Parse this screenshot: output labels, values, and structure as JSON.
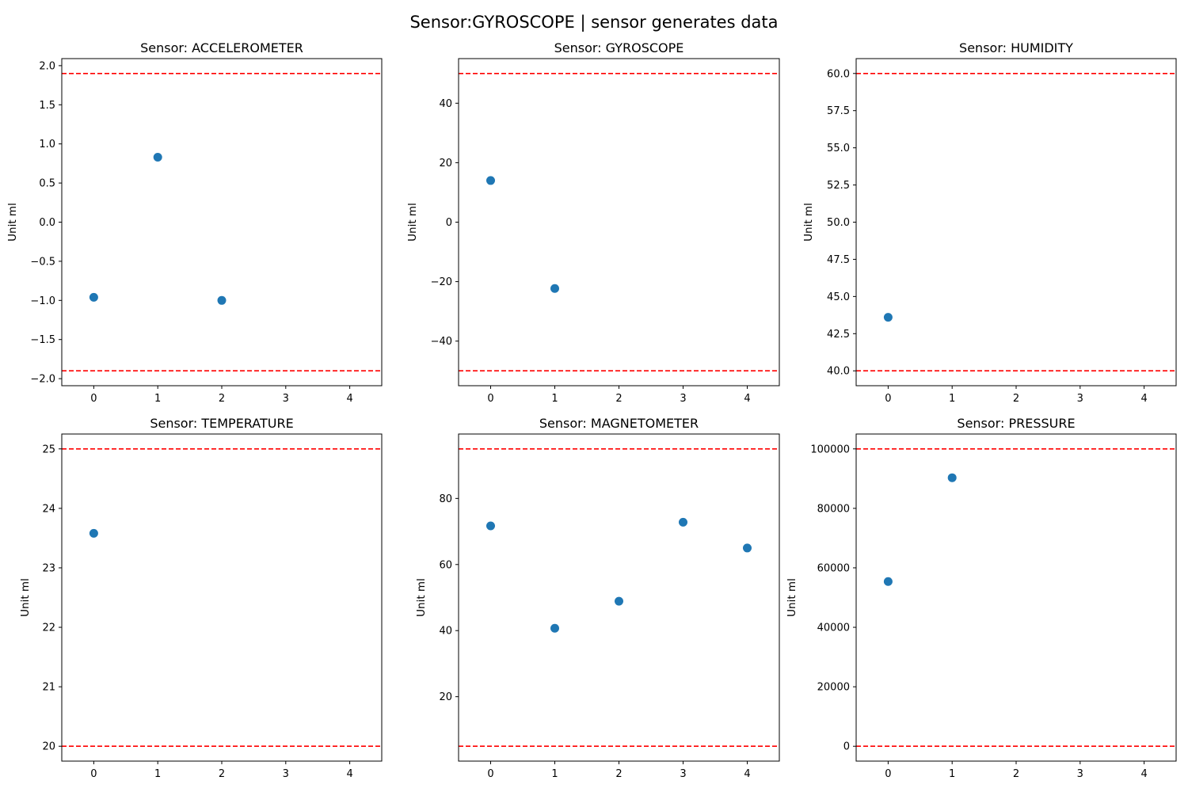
{
  "figure": {
    "title": "Sensor:GYROSCOPE | sensor generates data"
  },
  "style": {
    "point_color": "#1f77b4",
    "threshold_color": "#ff0000",
    "threshold_line_style": "dashed"
  },
  "chart_data": [
    {
      "type": "scatter",
      "title": "Sensor: ACCELEROMETER",
      "xlabel": "",
      "ylabel": "Unit ml",
      "x": [
        0,
        1,
        2
      ],
      "y": [
        -0.96,
        0.83,
        -1.0
      ],
      "thresholds": [
        1.9,
        -1.9
      ],
      "xlim": [
        -0.5,
        4.5
      ],
      "ylim": [
        -2.09,
        2.09
      ],
      "xticks": [
        "0",
        "1",
        "2",
        "3",
        "4"
      ],
      "yticks": [
        "−2.0",
        "−1.5",
        "−1.0",
        "−0.5",
        "0.0",
        "0.5",
        "1.0",
        "1.5",
        "2.0"
      ],
      "grid": false
    },
    {
      "type": "scatter",
      "title": "Sensor: GYROSCOPE",
      "xlabel": "",
      "ylabel": "Unit ml",
      "x": [
        0,
        1
      ],
      "y": [
        14,
        -22.3
      ],
      "thresholds": [
        50,
        -50
      ],
      "xlim": [
        -0.5,
        4.5
      ],
      "ylim": [
        -55,
        55
      ],
      "xticks": [
        "0",
        "1",
        "2",
        "3",
        "4"
      ],
      "yticks": [
        "−40",
        "−20",
        "0",
        "20",
        "40"
      ],
      "grid": false
    },
    {
      "type": "scatter",
      "title": "Sensor: HUMIDITY",
      "xlabel": "",
      "ylabel": "Unit ml",
      "x": [
        0
      ],
      "y": [
        43.6
      ],
      "thresholds": [
        60,
        40
      ],
      "xlim": [
        -0.5,
        4.5
      ],
      "ylim": [
        39,
        61
      ],
      "xticks": [
        "0",
        "1",
        "2",
        "3",
        "4"
      ],
      "yticks": [
        "40.0",
        "42.5",
        "45.0",
        "47.5",
        "50.0",
        "52.5",
        "55.0",
        "57.5",
        "60.0"
      ],
      "grid": false
    },
    {
      "type": "scatter",
      "title": "Sensor: TEMPERATURE",
      "xlabel": "",
      "ylabel": "Unit ml",
      "x": [
        0
      ],
      "y": [
        23.58
      ],
      "thresholds": [
        25,
        20
      ],
      "xlim": [
        -0.5,
        4.5
      ],
      "ylim": [
        19.75,
        25.25
      ],
      "xticks": [
        "0",
        "1",
        "2",
        "3",
        "4"
      ],
      "yticks": [
        "20",
        "21",
        "22",
        "23",
        "24",
        "25"
      ],
      "grid": false
    },
    {
      "type": "scatter",
      "title": "Sensor: MAGNETOMETER",
      "xlabel": "",
      "ylabel": "Unit ml",
      "x": [
        0,
        1,
        2,
        3,
        4
      ],
      "y": [
        71.7,
        40.7,
        48.9,
        72.8,
        65.0
      ],
      "thresholds": [
        95,
        5
      ],
      "xlim": [
        -0.5,
        4.5
      ],
      "ylim": [
        0.5,
        99.5
      ],
      "xticks": [
        "0",
        "1",
        "2",
        "3",
        "4"
      ],
      "yticks": [
        "20",
        "40",
        "60",
        "80"
      ],
      "grid": false
    },
    {
      "type": "scatter",
      "title": "Sensor: PRESSURE",
      "xlabel": "",
      "ylabel": "Unit ml",
      "x": [
        0,
        1
      ],
      "y": [
        55400,
        90300
      ],
      "thresholds": [
        100000,
        0
      ],
      "xlim": [
        -0.5,
        4.5
      ],
      "ylim": [
        -5000,
        105000
      ],
      "xticks": [
        "0",
        "1",
        "2",
        "3",
        "4"
      ],
      "yticks": [
        "0",
        "20000",
        "40000",
        "60000",
        "80000",
        "100000"
      ],
      "grid": false
    }
  ]
}
